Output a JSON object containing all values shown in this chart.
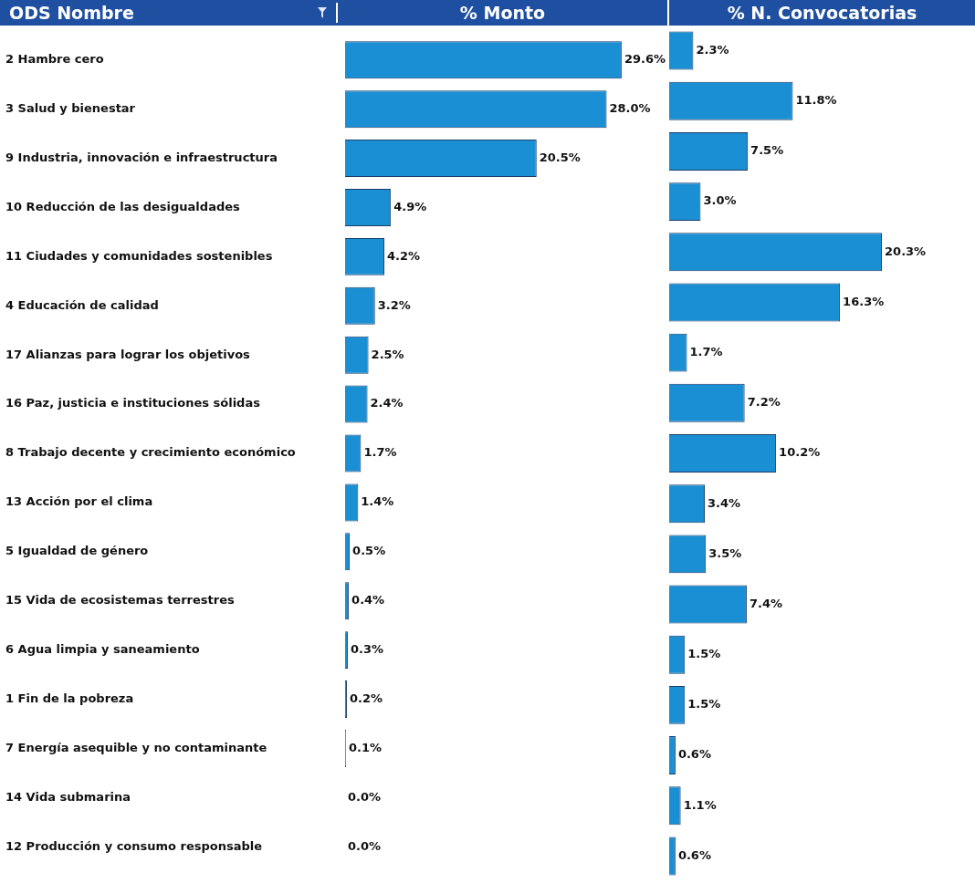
{
  "chart_data": [
    {
      "type": "bar",
      "orientation": "horizontal",
      "title": "% Monto",
      "ylabel": "ODS Nombre",
      "tick_labels": "y",
      "categories": [
        "2 Hambre cero",
        "3 Salud y bienestar",
        "9 Industria, innovación e infraestructura",
        "10 Reducción de las desigualdades",
        "11 Ciudades y comunidades sostenibles",
        "4 Educación de calidad",
        "17 Alianzas para lograr los objetivos",
        "16 Paz, justicia e instituciones sólidas",
        "8 Trabajo decente y crecimiento económico",
        "13 Acción por el clima",
        "5 Igualdad de género",
        "15 Vida de ecosistemas terrestres",
        "6 Agua limpia y saneamiento",
        "1 Fin de la pobreza",
        "7 Energía asequible y no contaminante",
        "14 Vida submarina",
        "12 Producción y consumo responsable"
      ],
      "color": "#1b8fd3",
      "values": [
        29.6,
        28.0,
        20.5,
        4.9,
        4.2,
        3.2,
        2.5,
        2.4,
        1.7,
        1.4,
        0.5,
        0.4,
        0.3,
        0.2,
        0.1,
        0.0,
        0.0
      ],
      "value_labels": [
        "29.6%",
        "28.0%",
        "20.5%",
        "4.9%",
        "4.2%",
        "3.2%",
        "2.5%",
        "2.4%",
        "1.7%",
        "1.4%",
        "0.5%",
        "0.4%",
        "0.3%",
        "0.2%",
        "0.1%",
        "0.0%",
        "0.0%"
      ]
    },
    {
      "type": "bar",
      "orientation": "horizontal",
      "title": "% N. Convocatorias",
      "tick_labels": false,
      "categories": [
        null,
        null,
        null,
        null,
        null,
        null,
        null,
        null,
        null,
        null,
        null,
        null,
        null,
        null,
        null,
        null,
        null
      ],
      "color": "#1b8fd3",
      "values": [
        2.3,
        11.8,
        7.5,
        3.0,
        20.3,
        16.3,
        1.7,
        7.2,
        10.2,
        3.4,
        3.5,
        7.4,
        1.5,
        1.5,
        0.6,
        1.1,
        0.6
      ],
      "value_labels": [
        "2.3%",
        "11.8%",
        "7.5%",
        "3.0%",
        "20.3%",
        "16.3%",
        "1.7%",
        "7.2%",
        "10.2%",
        "3.4%",
        "3.5%",
        "7.4%",
        "1.5%",
        "1.5%",
        "0.6%",
        "1.1%",
        "0.6%"
      ]
    }
  ]
}
